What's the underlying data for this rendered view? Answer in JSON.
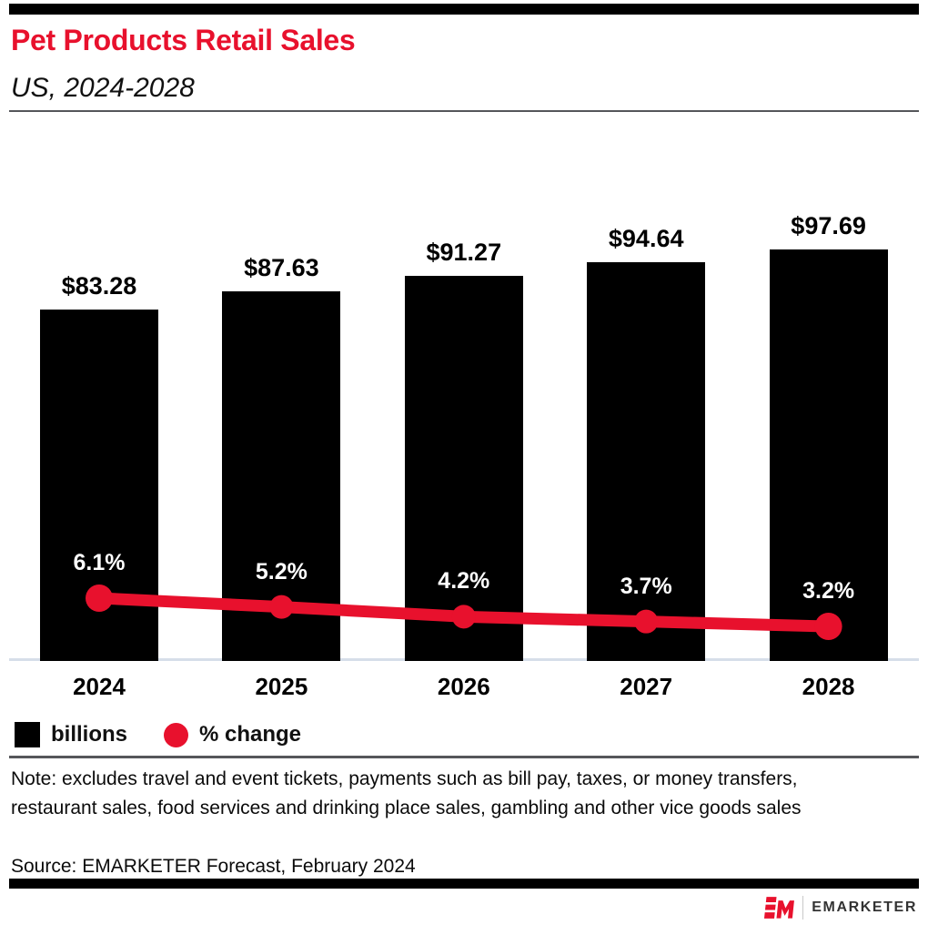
{
  "header": {
    "title": "Pet Products Retail Sales",
    "subtitle": "US, 2024-2028"
  },
  "chart_data": {
    "type": "bar",
    "subtype": "bar-with-line-overlay",
    "categories": [
      "2024",
      "2025",
      "2026",
      "2027",
      "2028"
    ],
    "series": [
      {
        "name": "billions",
        "type": "bar",
        "values": [
          83.28,
          87.63,
          91.27,
          94.64,
          97.69
        ],
        "labels": [
          "$83.28",
          "$87.63",
          "$91.27",
          "$94.64",
          "$97.69"
        ],
        "color": "#000000"
      },
      {
        "name": "% change",
        "type": "line",
        "values": [
          6.1,
          5.2,
          4.2,
          3.7,
          3.2
        ],
        "labels": [
          "6.1%",
          "5.2%",
          "4.2%",
          "3.7%",
          "3.2%"
        ],
        "color": "#E8112D"
      }
    ],
    "title": "Pet Products Retail Sales",
    "subtitle": "US, 2024-2028",
    "xlabel": "",
    "ylabel": "",
    "ylim_bars": [
      0,
      100
    ],
    "grid": false,
    "legend_position": "bottom-left",
    "axis_line_color": "#D6DEE9"
  },
  "legend": {
    "items": [
      {
        "label": "billions",
        "swatch": "square",
        "color": "#000000"
      },
      {
        "label": "% change",
        "swatch": "circle",
        "color": "#E8112D"
      }
    ]
  },
  "note": "Note: excludes travel and event tickets, payments such as bill pay, taxes, or money transfers, restaurant sales, food services and drinking place sales, gambling and other vice goods sales",
  "source": "Source: EMARKETER Forecast, February 2024",
  "footer": {
    "logo_mark": "EM",
    "logo_text": "EMARKETER"
  },
  "colors": {
    "accent_red": "#E8112D",
    "bar_black": "#000000",
    "divider_gray": "#55565A",
    "axis_gray_blue": "#D6DEE9"
  }
}
